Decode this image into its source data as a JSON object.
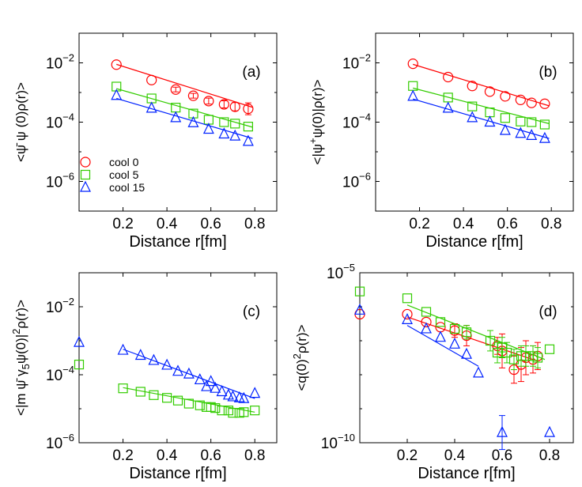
{
  "figure": {
    "title": ""
  },
  "chart_data": [
    {
      "type": "scatter",
      "panel_label": "(a)",
      "xlabel": "Distance r[fm]",
      "ylabel_parts": [
        "<",
        "ψ̄",
        " ψ (0)ρ(r)>"
      ],
      "x_ticks": [
        "0.2",
        "0.4",
        "0.6",
        "0.8"
      ],
      "xlim": [
        0,
        0.9
      ],
      "ylim_log10": [
        -7,
        -1
      ],
      "y_ticks": [
        {
          "exp": -2,
          "label_base": "10",
          "label_exp": "−2"
        },
        {
          "exp": -4,
          "label_base": "10",
          "label_exp": "−4"
        },
        {
          "exp": -6,
          "label_base": "10",
          "label_exp": "−6"
        }
      ],
      "legend": [
        {
          "label": "cool  0",
          "marker": "circle",
          "color": "#ff0000"
        },
        {
          "label": "cool  5",
          "marker": "square",
          "color": "#33cc00"
        },
        {
          "label": "cool 15",
          "marker": "triangle",
          "color": "#0022ff"
        }
      ],
      "series": [
        {
          "name": "cool 0",
          "marker": "circle",
          "color": "#ff0000",
          "x": [
            0.17,
            0.33,
            0.44,
            0.52,
            0.59,
            0.66,
            0.71,
            0.77
          ],
          "log10y": [
            -2.06,
            -2.58,
            -2.9,
            -3.11,
            -3.29,
            -3.4,
            -3.48,
            -3.55
          ],
          "err_log10": [
            0,
            0,
            0.08,
            0.08,
            0.1,
            0.12,
            0.14,
            0.2
          ],
          "fit_x": [
            0.17,
            0.79
          ],
          "fit_log10": [
            -2.05,
            -3.5
          ]
        },
        {
          "name": "cool 5",
          "marker": "square",
          "color": "#33cc00",
          "x": [
            0.17,
            0.33,
            0.44,
            0.52,
            0.59,
            0.66,
            0.71,
            0.77
          ],
          "log10y": [
            -2.8,
            -3.2,
            -3.51,
            -3.71,
            -3.92,
            -4.0,
            -4.05,
            -4.15
          ],
          "err_log10": [
            0,
            0,
            0,
            0,
            0,
            0,
            0,
            0
          ],
          "fit_x": [
            0.17,
            0.79
          ],
          "fit_log10": [
            -2.87,
            -4.17
          ]
        },
        {
          "name": "cool 15",
          "marker": "triangle",
          "color": "#0022ff",
          "x": [
            0.17,
            0.33,
            0.44,
            0.52,
            0.59,
            0.66,
            0.71,
            0.77
          ],
          "log10y": [
            -3.1,
            -3.53,
            -3.85,
            -4.02,
            -4.24,
            -4.4,
            -4.47,
            -4.65
          ],
          "err_log10": [
            0,
            0,
            0,
            0,
            0,
            0,
            0,
            0
          ],
          "fit_x": [
            0.17,
            0.79
          ],
          "fit_log10": [
            -3.2,
            -4.55
          ]
        }
      ]
    },
    {
      "type": "scatter",
      "panel_label": "(b)",
      "xlabel": "Distance r[fm]",
      "ylabel_parts": [
        "<|ψ",
        "+",
        "ψ(0)|ρ(r)>"
      ],
      "x_ticks": [
        "0.2",
        "0.4",
        "0.6",
        "0.8"
      ],
      "xlim": [
        0,
        0.9
      ],
      "ylim_log10": [
        -7,
        -1
      ],
      "y_ticks": [
        {
          "exp": -2,
          "label_base": "10",
          "label_exp": "−2"
        },
        {
          "exp": -4,
          "label_base": "10",
          "label_exp": "−4"
        },
        {
          "exp": -6,
          "label_base": "10",
          "label_exp": "−6"
        }
      ],
      "series": [
        {
          "name": "cool 0",
          "marker": "circle",
          "color": "#ff0000",
          "x": [
            0.17,
            0.33,
            0.44,
            0.52,
            0.59,
            0.66,
            0.71,
            0.77
          ],
          "log10y": [
            -2.03,
            -2.48,
            -2.78,
            -2.97,
            -3.13,
            -3.25,
            -3.35,
            -3.38
          ],
          "err_log10": [
            0,
            0,
            0,
            0,
            0,
            0,
            0,
            0
          ],
          "fit_x": [
            0.17,
            0.79
          ],
          "fit_log10": [
            -2.05,
            -3.45
          ]
        },
        {
          "name": "cool 5",
          "marker": "square",
          "color": "#33cc00",
          "x": [
            0.17,
            0.33,
            0.44,
            0.52,
            0.59,
            0.66,
            0.71,
            0.77
          ],
          "log10y": [
            -2.78,
            -3.17,
            -3.47,
            -3.67,
            -3.86,
            -3.98,
            -4.0,
            -4.08
          ],
          "err_log10": [
            0,
            0,
            0,
            0,
            0,
            0,
            0,
            0
          ],
          "fit_x": [
            0.17,
            0.79
          ],
          "fit_log10": [
            -2.85,
            -4.05
          ]
        },
        {
          "name": "cool 15",
          "marker": "triangle",
          "color": "#0022ff",
          "x": [
            0.17,
            0.33,
            0.44,
            0.52,
            0.59,
            0.66,
            0.71,
            0.77
          ],
          "log10y": [
            -3.13,
            -3.53,
            -3.85,
            -4.0,
            -4.28,
            -4.38,
            -4.45,
            -4.55
          ],
          "err_log10": [
            0,
            0,
            0,
            0,
            0,
            0,
            0,
            0
          ],
          "fit_x": [
            0.17,
            0.79
          ],
          "fit_log10": [
            -3.22,
            -4.55
          ]
        }
      ]
    },
    {
      "type": "scatter",
      "panel_label": "(c)",
      "xlabel": "Distance r[fm]",
      "ylabel_parts": [
        "<|m ",
        "ψ̄",
        " γ",
        "5",
        "ψ(0)|",
        "2",
        "ρ(r)>"
      ],
      "x_ticks": [
        "0.2",
        "0.4",
        "0.6",
        "0.8"
      ],
      "xlim": [
        0,
        0.9
      ],
      "ylim_log10": [
        -6,
        -1
      ],
      "y_ticks": [
        {
          "exp": -2,
          "label_base": "10",
          "label_exp": "−2"
        },
        {
          "exp": -4,
          "label_base": "10",
          "label_exp": "−4"
        },
        {
          "exp": -6,
          "label_base": "10",
          "label_exp": "−6"
        }
      ],
      "series": [
        {
          "name": "cool 5",
          "marker": "square",
          "color": "#33cc00",
          "x": [
            0.0,
            0.2,
            0.28,
            0.34,
            0.4,
            0.45,
            0.5,
            0.55,
            0.58,
            0.6,
            0.62,
            0.65,
            0.68,
            0.7,
            0.73,
            0.75,
            0.8
          ],
          "log10y": [
            -3.7,
            -4.4,
            -4.5,
            -4.6,
            -4.68,
            -4.76,
            -4.85,
            -4.9,
            -4.95,
            -4.95,
            -4.98,
            -5.05,
            -5.05,
            -5.12,
            -5.12,
            -5.1,
            -5.05
          ],
          "err_log10": [
            0,
            0,
            0,
            0,
            0,
            0,
            0,
            0,
            0,
            0,
            0,
            0,
            0,
            0,
            0,
            0,
            0
          ],
          "fit_x": [
            0.2,
            0.8
          ],
          "fit_log10": [
            -4.38,
            -5.1
          ]
        },
        {
          "name": "cool 15",
          "marker": "triangle",
          "color": "#0022ff",
          "x": [
            0.0,
            0.2,
            0.28,
            0.34,
            0.4,
            0.45,
            0.5,
            0.55,
            0.58,
            0.6,
            0.62,
            0.65,
            0.68,
            0.7,
            0.73,
            0.75,
            0.8
          ],
          "log10y": [
            -3.05,
            -3.28,
            -3.43,
            -3.58,
            -3.72,
            -3.9,
            -3.98,
            -4.15,
            -4.35,
            -4.2,
            -4.4,
            -4.5,
            -4.6,
            -4.65,
            -4.68,
            -4.7,
            -4.55
          ],
          "err_log10": [
            0,
            0,
            0,
            0,
            0,
            0,
            0,
            0,
            0,
            0,
            0,
            0,
            0,
            0,
            0,
            0,
            0
          ],
          "fit_x": [
            0.2,
            0.8
          ],
          "fit_log10": [
            -3.25,
            -4.7
          ]
        }
      ]
    },
    {
      "type": "scatter",
      "panel_label": "(d)",
      "xlabel": "Distance r[fm]",
      "ylabel_parts": [
        "<q(0)",
        "2",
        "ρ(r)>"
      ],
      "x_ticks": [
        "0.2",
        "0.4",
        "0.6",
        "0.8"
      ],
      "xlim": [
        0,
        0.9
      ],
      "ylim_log10": [
        -10,
        -5
      ],
      "y_ticks": [
        {
          "exp": -5,
          "label_base": "10",
          "label_exp": "−5"
        },
        {
          "exp": -10,
          "label_base": "10",
          "label_exp": "−10"
        }
      ],
      "series": [
        {
          "name": "cool 0",
          "marker": "circle",
          "color": "#ff0000",
          "x": [
            0.0,
            0.2,
            0.28,
            0.34,
            0.4,
            0.45,
            0.58,
            0.6,
            0.65,
            0.68,
            0.7,
            0.73,
            0.75
          ],
          "log10y": [
            -6.22,
            -6.22,
            -6.45,
            -6.6,
            -6.7,
            -6.85,
            -7.15,
            -7.3,
            -7.85,
            -7.7,
            -7.5,
            -7.55,
            -7.45
          ],
          "err_log10": [
            0,
            0,
            0,
            0,
            0.2,
            0.3,
            0.25,
            0.5,
            0.4,
            0.5,
            0.5,
            0.4,
            0.4
          ],
          "fit_x": [
            0.2,
            0.75
          ],
          "fit_log10": [
            -6.3,
            -7.6
          ]
        },
        {
          "name": "cool 5",
          "marker": "square",
          "color": "#33cc00",
          "x": [
            0.0,
            0.2,
            0.28,
            0.34,
            0.4,
            0.45,
            0.55,
            0.58,
            0.6,
            0.62,
            0.65,
            0.68,
            0.7,
            0.73,
            0.75,
            0.8
          ],
          "log10y": [
            -5.55,
            -5.75,
            -6.15,
            -6.45,
            -6.65,
            -6.75,
            -7.0,
            -7.35,
            -7.2,
            -7.35,
            -7.55,
            -7.45,
            -7.45,
            -7.45,
            -7.5,
            -7.25
          ],
          "err_log10": [
            0,
            0,
            0,
            0,
            0,
            0.2,
            0.3,
            0.3,
            0.3,
            0.3,
            0.3,
            0.3,
            0.3,
            0.3,
            0.3,
            0
          ],
          "fit_x": [
            0.2,
            0.78
          ],
          "fit_log10": [
            -5.95,
            -7.55
          ]
        },
        {
          "name": "cool 15",
          "marker": "triangle",
          "color": "#0022ff",
          "x": [
            0.0,
            0.2,
            0.28,
            0.34,
            0.4,
            0.45,
            0.5,
            0.6,
            0.8
          ],
          "log10y": [
            -6.1,
            -6.38,
            -6.65,
            -6.9,
            -7.1,
            -7.4,
            -7.95,
            -9.7,
            -9.7
          ],
          "err_log10": [
            0,
            0,
            0,
            0,
            0,
            0,
            0,
            0.5,
            0
          ],
          "fit_x": [
            0.2,
            0.5
          ],
          "fit_log10": [
            -6.55,
            -7.75
          ]
        }
      ]
    }
  ]
}
